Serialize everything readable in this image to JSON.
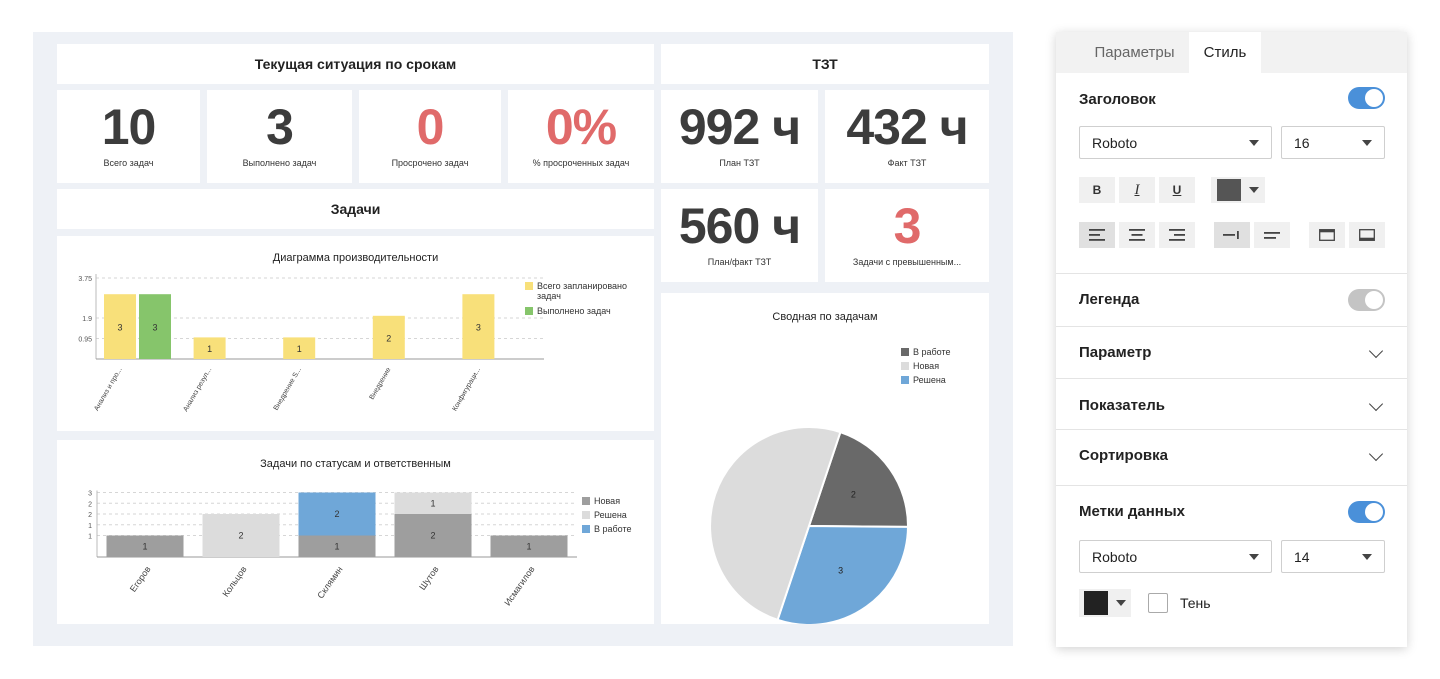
{
  "dashboard": {
    "header_deadlines": "Текущая ситуация по срокам",
    "header_tzt": "ТЗТ",
    "header_tasks": "Задачи",
    "kpis": [
      {
        "value": "10",
        "caption": "Всего задач"
      },
      {
        "value": "3",
        "caption": "Выполнено задач"
      },
      {
        "value": "0",
        "caption": "Просрочено задач"
      },
      {
        "value": "0%",
        "caption": "% просроченных задач"
      },
      {
        "value": "992 ч",
        "caption": "План ТЗТ"
      },
      {
        "value": "432 ч",
        "caption": "Факт ТЗТ"
      },
      {
        "value": "560 ч",
        "caption": "План/факт ТЗТ"
      },
      {
        "value": "3",
        "caption": "Задачи с превышенным..."
      }
    ],
    "colors": {
      "accent_red": "#e06a6a",
      "kpi_dark": "#3c3c3c",
      "background": "#eef1f6"
    }
  },
  "chart_data": [
    {
      "type": "bar",
      "title": "Диаграмма производительности",
      "categories": [
        "Анализ и про...",
        "Анализ резул...",
        "Внедрение S...",
        "Внедрение",
        "Конфигураци..."
      ],
      "series": [
        {
          "name": "Всего запланировано задач",
          "color": "#f8e07a",
          "values": [
            3,
            1,
            1,
            2,
            3
          ]
        },
        {
          "name": "Выполнено задач",
          "color": "#86c56b",
          "values": [
            3,
            null,
            null,
            null,
            null
          ]
        }
      ],
      "yticks": [
        "3.75",
        "1.9",
        "0.95"
      ],
      "ylim": [
        0,
        3.75
      ],
      "legend": "right"
    },
    {
      "type": "bar",
      "stacked": true,
      "title": "Задачи по статусам и ответственным",
      "categories": [
        "Егоров",
        "Кольцов",
        "Склямин",
        "Шутов",
        "Исмагилов"
      ],
      "series": [
        {
          "name": "Новая",
          "color": "#9e9e9e",
          "values": [
            1,
            null,
            1,
            2,
            1
          ]
        },
        {
          "name": "Решена",
          "color": "#dcdcdc",
          "values": [
            null,
            2,
            null,
            1,
            null
          ]
        },
        {
          "name": "В работе",
          "color": "#6fa7d8",
          "values": [
            null,
            null,
            2,
            null,
            null
          ]
        }
      ],
      "yticks": [
        "3",
        "2",
        "2",
        "1",
        "1"
      ],
      "legend": "right"
    },
    {
      "type": "pie",
      "title": "Сводная по задачам",
      "slices": [
        {
          "name": "В работе",
          "color": "#696969",
          "value": 2,
          "label": "2"
        },
        {
          "name": "Новая",
          "color": "#dcdcdc",
          "value": 5,
          "label": ""
        },
        {
          "name": "Решена",
          "color": "#6fa7d8",
          "value": 3,
          "label": "3"
        }
      ],
      "legend": "top-right"
    }
  ],
  "panel": {
    "tab_params": "Параметры",
    "tab_style": "Стиль",
    "header_section": "Заголовок",
    "header_toggle": true,
    "header_font": "Roboto",
    "header_size": "16",
    "bold": "B",
    "italic": "I",
    "underline": "U",
    "legend_section": "Легенда",
    "legend_toggle": false,
    "param_section": "Параметр",
    "indicator_section": "Показатель",
    "sort_section": "Сортировка",
    "labels_section": "Метки данных",
    "labels_toggle": true,
    "labels_font": "Roboto",
    "labels_size": "14",
    "shadow_label": "Тень",
    "toggle_on_color": "#4a90d9",
    "toggle_off_color": "#c4c4c4"
  }
}
